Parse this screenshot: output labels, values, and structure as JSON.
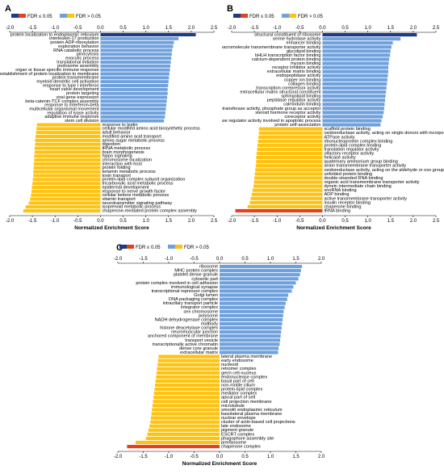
{
  "colors": {
    "fdr_sig_pos": "#1a3a8f",
    "fdr_sig_neg": "#e8401c",
    "fdr_ns_pos": "#6fa1dd",
    "fdr_ns_neg": "#ffc20e"
  },
  "chart_data": [
    {
      "type": "bar",
      "orientation": "horizontal",
      "panel_label": "A",
      "xlabel": "Normalized Enrichment Score",
      "xlim": [
        -2.0,
        2.5
      ],
      "xticks": [
        "-2.0",
        "-1.5",
        "-1.0",
        "-0.5",
        "0.0",
        "0.5",
        "1.0",
        "1.5",
        "2.0",
        "2.5"
      ],
      "legend": [
        {
          "label": "FDR ≤ 0.05",
          "colors": [
            "#1a3a8f",
            "#e8401c"
          ]
        },
        {
          "label": "FDR > 0.05",
          "colors": [
            "#6fa1dd",
            "#ffc20e"
          ]
        }
      ],
      "legend_position": "top-left",
      "categories": [
        "protein localization to endoplasmic reticulum",
        "interleukin-17 production",
        "protein ADP-ribosylation",
        "exploration behavior",
        "RNA catabolic process",
        "pinocytosis",
        "exocytic process",
        "translational initiation",
        "podosome assembly",
        "organ or tissue specific immune response",
        "establishment of protein localization to membrane",
        "protein transmembrane",
        "myeloid dendritic cell activation",
        "response to type I interferon",
        "heart valve development",
        "protein targeting",
        "viral gene expression",
        "beta-catenin-TCF complex assembly",
        "response to interferon-beta",
        "multicellular organismal movement",
        "regulation of lyase activity",
        "adaptive immune response",
        "stem cell division",
        "response to leptin",
        "cellular modified amino acid biosynthetic process",
        "adult behavior",
        "modified amino acid transport",
        "amino sugar metabolic process",
        "digestion",
        "tRNA metabolic process",
        "brain morphogenesis",
        "hippo signaling",
        "chromosome localization",
        "interaction with host",
        "protein folding",
        "ketamin metabolic process",
        "toxin transport",
        "protein-lipid complex subunit organization",
        "tricarboxylic acid metabolic process",
        "epidermal development",
        "response to nerve growth factor",
        "cellular ketone metabolic process",
        "vitamin transport",
        "neurotransmitter signaling pathway",
        "isoprenoid metabolic process",
        "chaperone-mediated protein complex assembly"
      ],
      "values": [
        2.1,
        1.72,
        1.62,
        1.6,
        1.58,
        1.57,
        1.56,
        1.55,
        1.54,
        1.53,
        1.52,
        1.51,
        1.5,
        1.49,
        1.48,
        1.48,
        1.47,
        1.46,
        1.45,
        1.44,
        1.43,
        1.42,
        1.4,
        -1.4,
        -1.41,
        -1.42,
        -1.43,
        -1.44,
        -1.44,
        -1.45,
        -1.45,
        -1.46,
        -1.46,
        -1.47,
        -1.47,
        -1.48,
        -1.48,
        -1.49,
        -1.5,
        -1.51,
        -1.52,
        -1.53,
        -1.55,
        -1.58,
        -1.65,
        -1.7
      ],
      "significant": [
        true,
        false,
        false,
        false,
        false,
        false,
        false,
        false,
        false,
        false,
        false,
        false,
        false,
        false,
        false,
        false,
        false,
        false,
        false,
        false,
        false,
        false,
        false,
        false,
        false,
        false,
        false,
        false,
        false,
        false,
        false,
        false,
        false,
        false,
        false,
        false,
        false,
        false,
        false,
        false,
        false,
        false,
        false,
        false,
        false,
        false
      ]
    },
    {
      "type": "bar",
      "orientation": "horizontal",
      "panel_label": "B",
      "xlabel": "Normalized Enrichment Score",
      "xlim": [
        -2.0,
        2.5
      ],
      "xticks": [
        "-2.0",
        "-1.5",
        "-1.0",
        "-0.5",
        "0.0",
        "0.5",
        "1.0",
        "1.5",
        "2.0",
        "2.5"
      ],
      "legend": [
        {
          "label": "FDR ≤ 0.05",
          "colors": [
            "#1a3a8f",
            "#e8401c"
          ]
        },
        {
          "label": "FDR > 0.05",
          "colors": [
            "#6fa1dd",
            "#ffc20e"
          ]
        }
      ],
      "legend_position": "top-left",
      "categories": [
        "structural constituent of ribosome",
        "serine hydrolase activity",
        "enhancer binding",
        "macromolecule transmembrane transporter activity",
        "glycolipid binding",
        "bHLH transcription factor binding",
        "calcium-dependent protein binding",
        "myosin binding",
        "receptor inhibitor activity",
        "extracellular matrix binding",
        "endopeptidase activity",
        "copper ion binding",
        "collagen binding",
        "transcription corepressor activity",
        "extracellular matrix structural constituent",
        "sphingolipid binding",
        "peptidase regulator activity",
        "calmodulin binding",
        "phosphotransferase activity, phosphate group as acceptor",
        "steroid hormone receptor activity",
        "coreceptor activity",
        "cysteine-type endopeptidase regulator activity involved in apoptotic process",
        "protein self-association",
        "scaffold protein binding",
        "oxidoreductase activity, acting on single donors with incorporation of molecular",
        "ATPase activity",
        "ribonucleoprotein complex binding",
        "protein-lipid complex binding",
        "translation regulator activity",
        "olfactory receptor activity",
        "helicase activity",
        "quaternary ammonium group binding",
        "anion transmembrane transporter activity",
        "oxidoreductase activity, acting on the aldehyde or oxo group of donors",
        "unfolded protein binding",
        "double-stranded RNA binding",
        "organic acid transmembrane transporter activity",
        "dynein intermediate chain binding",
        "snoRNA binding",
        "ADP binding",
        "active transmembrane transporter activity",
        "insulin receptor binding",
        "chaperone binding",
        "tRNA binding"
      ],
      "values": [
        2.08,
        1.72,
        1.55,
        1.52,
        1.5,
        1.49,
        1.47,
        1.46,
        1.45,
        1.45,
        1.44,
        1.43,
        1.42,
        1.41,
        1.4,
        1.39,
        1.38,
        1.37,
        1.36,
        1.35,
        1.33,
        1.3,
        1.28,
        -1.4,
        -1.4,
        -1.41,
        -1.42,
        -1.43,
        -1.44,
        -1.45,
        -1.46,
        -1.46,
        -1.47,
        -1.48,
        -1.49,
        -1.5,
        -1.51,
        -1.52,
        -1.54,
        -1.56,
        -1.58,
        -1.6,
        -1.65,
        -1.92
      ],
      "significant": [
        true,
        false,
        false,
        false,
        false,
        false,
        false,
        false,
        false,
        false,
        false,
        false,
        false,
        false,
        false,
        false,
        false,
        false,
        false,
        false,
        false,
        false,
        false,
        false,
        false,
        false,
        false,
        false,
        false,
        false,
        false,
        false,
        false,
        false,
        false,
        false,
        false,
        false,
        false,
        false,
        false,
        false,
        false,
        true
      ]
    },
    {
      "type": "bar",
      "orientation": "horizontal",
      "panel_label": "C",
      "xlabel": "Normalized Enrichment Score",
      "xlim": [
        -2.0,
        2.0
      ],
      "xticks": [
        "-2.0",
        "-1.5",
        "-1.0",
        "-0.5",
        "0.0",
        "0.5",
        "1.0",
        "1.5",
        "2.0"
      ],
      "legend": [
        {
          "label": "FDR ≤ 0.05",
          "colors": [
            "#1a3a8f",
            "#e8401c"
          ]
        },
        {
          "label": "FDR > 0.05",
          "colors": [
            "#6fa1dd",
            "#ffc20e"
          ]
        }
      ],
      "legend_position": "top-left",
      "categories": [
        "ribosome",
        "MHC protein complex",
        "platelet dense granule",
        "cytosolic part",
        "protein complex involved in cell adhesion",
        "immunological synapse",
        "transcriptional repressor complex",
        "Golgi lumen",
        "DNA packaging complex",
        "intracillary transport particle",
        "integrator complex",
        "sex chromosome",
        "polysome",
        "NADH dehydrogenase complex",
        "midbody",
        "histone deacetylase complex",
        "neuromuscular junction",
        "anchored component of membrane",
        "transport vesicle",
        "transcriptionally active chromatin",
        "dense core granule",
        "extracellular matrix",
        "lateral plasma membrane",
        "early endosome",
        "nucleoid",
        "retromer complex",
        "germ cell nucleus",
        "endonuclease complex",
        "basal part of cell",
        "non-motile cilium",
        "protein-lipid complex",
        "mediator complex",
        "apical part of cell",
        "cell projection membrane",
        "microtubule",
        "smooth endoplasmic reticulum",
        "basolateral plasma membrane",
        "nuclear envelope",
        "cluster of actin-based cell projections",
        "late endosome",
        "pigment granule",
        "ESCRT complex",
        "phagophore assembly site",
        "preribosome",
        "chaperone complex"
      ],
      "values": [
        1.62,
        1.6,
        1.58,
        1.55,
        1.5,
        1.45,
        1.42,
        1.35,
        1.33,
        1.3,
        1.28,
        1.26,
        1.25,
        1.24,
        1.23,
        1.22,
        1.21,
        1.2,
        1.19,
        1.18,
        1.16,
        1.15,
        -1.2,
        -1.21,
        -1.22,
        -1.23,
        -1.24,
        -1.25,
        -1.26,
        -1.27,
        -1.28,
        -1.29,
        -1.3,
        -1.31,
        -1.32,
        -1.33,
        -1.34,
        -1.35,
        -1.36,
        -1.38,
        -1.4,
        -1.42,
        -1.45,
        -1.65,
        -1.82
      ],
      "significant": [
        false,
        false,
        false,
        false,
        false,
        false,
        false,
        false,
        false,
        false,
        false,
        false,
        false,
        false,
        false,
        false,
        false,
        false,
        false,
        false,
        false,
        false,
        false,
        false,
        false,
        false,
        false,
        false,
        false,
        false,
        false,
        false,
        false,
        false,
        false,
        false,
        false,
        false,
        false,
        false,
        false,
        false,
        false,
        false,
        true
      ]
    }
  ]
}
